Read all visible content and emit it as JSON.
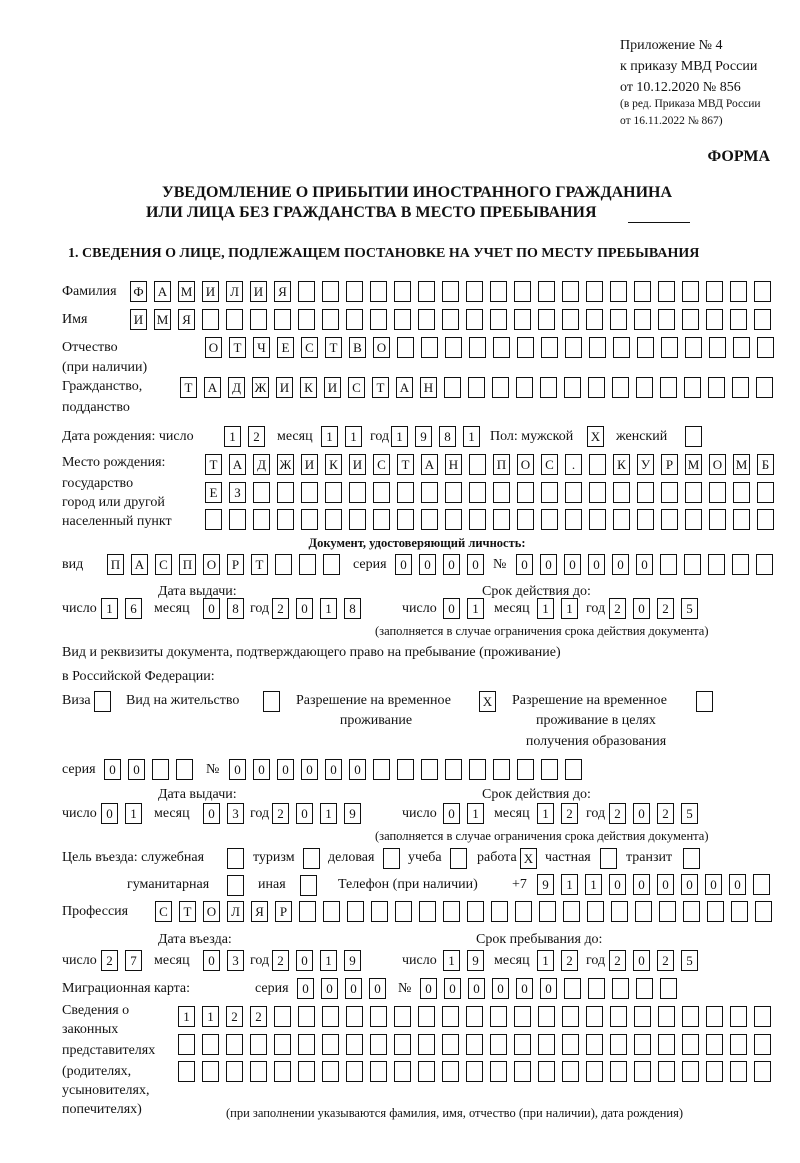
{
  "header": {
    "appendix": "Приложение № 4",
    "order": "к приказу МВД России",
    "order_date": "от 10.12.2020 № 856",
    "revision_1": "(в ред. Приказа МВД России",
    "revision_2": "от 16.11.2022 № 867)",
    "form_label": "ФОРМА",
    "title_1": "УВЕДОМЛЕНИЕ О ПРИБЫТИИ ИНОСТРАННОГО ГРАЖДАНИНА",
    "title_2": "ИЛИ ЛИЦА БЕЗ ГРАЖДАНСТВА В МЕСТО ПРЕБЫВАНИЯ",
    "section_1": "1. СВЕДЕНИЯ О ЛИЦЕ, ПОДЛЕЖАЩЕМ ПОСТАНОВКЕ НА УЧЕТ ПО МЕСТУ ПРЕБЫВАНИЯ"
  },
  "labels": {
    "surname": "Фамилия",
    "name": "Имя",
    "patronymic": "Отчество",
    "patronymic_note": "(при наличии)",
    "citizenship": "Гражданство,",
    "citizenship_2": "подданство",
    "birth_date": "Дата рождения:  число",
    "day": "число",
    "month": "месяц",
    "year": "год",
    "sex": "Пол: мужской",
    "female": "женский",
    "birthplace_1": "Место рождения:",
    "birthplace_2": "государство",
    "birthplace_3": "город или другой",
    "birthplace_4": "населенный пункт",
    "id_doc": "Документ, удостоверяющий личность:",
    "kind": "вид",
    "series": "серия",
    "number": "№",
    "issue_date": "Дата выдачи:",
    "valid_until": "Срок действия до:",
    "validity_note": "(заполняется в случае ограничения срока действия документа)",
    "stay_doc_1": "Вид и реквизиты документа, подтверждающего право на пребывание (проживание)",
    "stay_doc_2": "в Российской Федерации:",
    "visa": "Виза",
    "residence": "Вид на жительство",
    "trp_1": "Разрешение на временное",
    "trp_2": "проживание",
    "trp_edu_1": "Разрешение на временное",
    "trp_edu_2": "проживание в целях",
    "trp_edu_3": "получения образования",
    "purpose": "Цель въезда: служебная",
    "tourism": "туризм",
    "business": "деловая",
    "study": "учеба",
    "work": "работа",
    "private": "частная",
    "transit": "транзит",
    "humanitarian": "гуманитарная",
    "other": "иная",
    "phone": "Телефон (при наличии)",
    "phone_prefix": "+7",
    "profession": "Профессия",
    "entry_date": "Дата въезда:",
    "stay_until": "Срок пребывания до:",
    "migration_card": "Миграционная карта:",
    "reps_1": "Сведения о",
    "reps_2": "законных",
    "reps_3": "представителях",
    "reps_4": "(родителях,",
    "reps_5": "усыновителях,",
    "reps_6": "попечителях)",
    "reps_note": "(при заполнении указываются фамилия, имя, отчество (при наличии), дата рождения)"
  },
  "person": {
    "surname": "ФАМИЛИЯ",
    "name": "ИМЯ",
    "patronymic": "ОТЧЕСТВО",
    "citizenship": "ТАДЖИКИСТАН",
    "birth_day": "12",
    "birth_month": "11",
    "birth_year": "1981",
    "male": "X",
    "female": "",
    "birthplace_1": "ТАДЖИКИСТАН ПОС. КУРМОМБ",
    "birthplace_2": "ЕЗ",
    "birthplace_3": ""
  },
  "id_document": {
    "kind": "ПАСПОРТ",
    "series": "0000",
    "number": "000000",
    "issue_day": "16",
    "issue_month": "08",
    "issue_year": "2018",
    "valid_day": "01",
    "valid_month": "11",
    "valid_year": "2025"
  },
  "stay_document": {
    "visa": "",
    "residence": "",
    "trp": "X",
    "trp_edu": "",
    "series": "00",
    "number": "000000",
    "issue_day": "01",
    "issue_month": "03",
    "issue_year": "2019",
    "valid_day": "01",
    "valid_month": "12",
    "valid_year": "2025"
  },
  "purpose": {
    "official": "",
    "tourism": "",
    "business": "",
    "study": "",
    "work": "X",
    "private": "",
    "transit": "",
    "humanitarian": "",
    "other": ""
  },
  "phone": "911000000",
  "profession": "СТОЛЯР",
  "entry": {
    "day": "27",
    "month": "03",
    "year": "2019",
    "until_day": "19",
    "until_month": "12",
    "until_year": "2025"
  },
  "migration_card": {
    "series": "0000",
    "number": "000000"
  },
  "representatives": {
    "line_1": "1122",
    "line_2": "",
    "line_3": ""
  }
}
